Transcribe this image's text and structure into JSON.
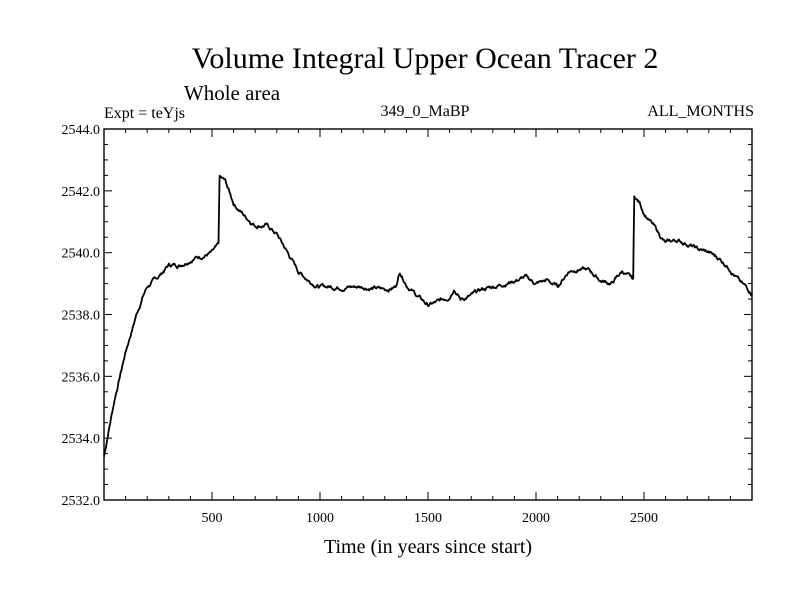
{
  "chart_data": {
    "type": "line",
    "title": "Volume Integral Upper Ocean Tracer 2",
    "subtitle": "Whole area",
    "left_label": "Expt = teYjs",
    "center_label": "349_0_MaBP",
    "right_label": "ALL_MONTHS",
    "xlabel": "Time (in years since start)",
    "ylabel": "",
    "xlim": [
      0,
      3000
    ],
    "ylim": [
      2532.0,
      2544.0
    ],
    "x_ticks": [
      500,
      1000,
      1500,
      2000,
      2500
    ],
    "x_tick_labels": [
      "500",
      "1000",
      "1500",
      "2000",
      "2500"
    ],
    "y_ticks": [
      2532.0,
      2534.0,
      2536.0,
      2538.0,
      2540.0,
      2542.0,
      2544.0
    ],
    "y_tick_labels": [
      "2532.0",
      "2534.0",
      "2536.0",
      "2538.0",
      "2540.0",
      "2542.0",
      "2544.0"
    ],
    "series": [
      {
        "name": "Volume Integral Upper Ocean Tracer 2",
        "x": [
          0,
          20,
          50,
          100,
          150,
          180,
          200,
          250,
          300,
          350,
          400,
          450,
          500,
          530,
          535,
          560,
          600,
          650,
          700,
          750,
          800,
          850,
          900,
          950,
          1000,
          1100,
          1200,
          1300,
          1350,
          1370,
          1400,
          1450,
          1500,
          1550,
          1600,
          1620,
          1650,
          1700,
          1750,
          1800,
          1850,
          1900,
          1950,
          2000,
          2050,
          2100,
          2150,
          2200,
          2250,
          2300,
          2350,
          2400,
          2450,
          2455,
          2480,
          2500,
          2550,
          2600,
          2650,
          2700,
          2750,
          2800,
          2850,
          2900,
          2950,
          3000
        ],
        "y": [
          2533.4,
          2534.2,
          2535.3,
          2536.8,
          2538.0,
          2538.6,
          2538.9,
          2539.2,
          2539.6,
          2539.6,
          2539.8,
          2539.9,
          2540.0,
          2540.2,
          2542.4,
          2542.3,
          2541.6,
          2541.2,
          2540.9,
          2540.9,
          2540.6,
          2540.0,
          2539.4,
          2539.1,
          2538.9,
          2538.9,
          2538.9,
          2538.8,
          2538.9,
          2539.4,
          2539.0,
          2538.6,
          2538.3,
          2538.4,
          2538.6,
          2538.9,
          2538.5,
          2538.6,
          2538.8,
          2538.9,
          2539.0,
          2539.1,
          2539.2,
          2539.0,
          2539.1,
          2538.9,
          2539.4,
          2539.5,
          2539.4,
          2539.1,
          2539.0,
          2539.4,
          2539.1,
          2541.8,
          2541.6,
          2541.3,
          2540.8,
          2540.3,
          2540.4,
          2540.3,
          2540.1,
          2540.0,
          2539.8,
          2539.5,
          2539.0,
          2538.7
        ]
      }
    ]
  }
}
